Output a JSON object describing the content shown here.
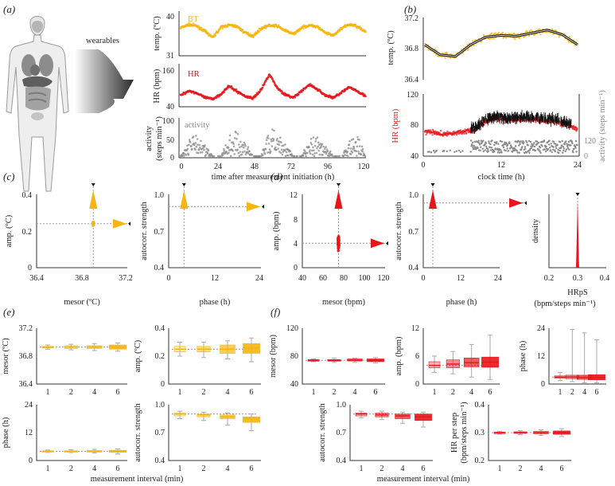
{
  "colors": {
    "temp": "#f6b60f",
    "hr": "#e8151b",
    "activity": "#8a8a8a",
    "fit": "#111111",
    "ref": "#9a9a9a"
  },
  "panels": {
    "a": "(a)",
    "b": "(b)",
    "c": "(c)",
    "d": "(d)",
    "e": "(e)",
    "f": "(f)"
  },
  "texts": {
    "wearables": "wearables",
    "bt": "BT",
    "hr": "HR",
    "activity": "activity",
    "a_ylabel_temp": "temp. (ºC)",
    "a_ylabel_hr": "HR (bpm)",
    "a_ylabel_act1": "activity",
    "a_ylabel_act2": "(steps min⁻¹)",
    "a_xlabel": "time after measurement initiation (h)",
    "b_ylabel_temp": "temp. (ºC)",
    "b_ylabel_hr": "HR (bpm)",
    "b_ylabel_act": "activity (steps min⁻¹)",
    "b_xlabel": "clock time (h)",
    "amp_c": "amp. (ºC)",
    "mesor_c": "mesor (ºC)",
    "autocorr": "autocorr. strength",
    "phase": "phase (h)",
    "amp_bpm": "amp. (bpm)",
    "mesor_bpm": "mesor (bpm)",
    "density": "density",
    "hrps": "HRpS",
    "hrps_unit": "(bpm/steps min⁻¹)",
    "phase_h": "phase (h)",
    "interval": "measurement interval (min)",
    "hr_per_step1": "HR per step",
    "hr_per_step2": "(bpm/steps min⁻¹)"
  },
  "chart_data": [
    {
      "id": "a1",
      "type": "scatter",
      "ylabel": "temp. (ºC)",
      "ylim": [
        31,
        40
      ],
      "yticks": [
        "31",
        "40"
      ],
      "xlim": [
        0,
        120
      ],
      "series": [
        {
          "name": "BT",
          "y": [
            36.5,
            37.2,
            36.9,
            35.8,
            34.5,
            36.6,
            37.1,
            36.8,
            35.5,
            34.8,
            36.4,
            37.0,
            36.9,
            35.9,
            35.2,
            36.5,
            37.1,
            36.7,
            35.4,
            34.9,
            36.5,
            37.2,
            36.8,
            35.6
          ]
        }
      ]
    },
    {
      "id": "a2",
      "type": "scatter",
      "ylabel": "HR (bpm)",
      "ylim": [
        40,
        160
      ],
      "yticks": [
        "40",
        "160"
      ],
      "xlim": [
        0,
        120
      ],
      "series": [
        {
          "name": "HR",
          "y": [
            68,
            82,
            75,
            62,
            58,
            72,
            95,
            80,
            66,
            60,
            85,
            130,
            90,
            70,
            62,
            80,
            100,
            85,
            68,
            62,
            78,
            92,
            80,
            66
          ]
        }
      ]
    },
    {
      "id": "a3",
      "type": "scatter",
      "ylabel": "activity (steps min⁻¹)",
      "ylim": [
        0,
        100
      ],
      "yticks": [
        "0",
        "50",
        "100"
      ],
      "xlim": [
        0,
        120
      ],
      "xticks": [
        "0",
        "24",
        "48",
        "72",
        "96",
        "120"
      ],
      "xlabel": "time after measurement initiation (h)",
      "series": [
        {
          "name": "activity",
          "y": [
            0,
            45,
            60,
            30,
            0,
            0,
            55,
            70,
            40,
            0,
            0,
            80,
            65,
            35,
            0,
            0,
            50,
            60,
            30,
            0,
            0,
            45,
            55,
            0
          ]
        }
      ]
    },
    {
      "id": "b1",
      "type": "line",
      "ylabel": "temp. (ºC)",
      "ylim": [
        36.4,
        37.2
      ],
      "yticks": [
        "36.4",
        "36.8",
        "37.2"
      ],
      "xlim": [
        0,
        24
      ],
      "series": [
        {
          "name": "fit",
          "y": [
            36.85,
            36.72,
            36.7,
            36.85,
            36.95,
            36.97,
            36.96,
            37.0,
            37.04,
            36.98,
            36.85
          ]
        }
      ]
    },
    {
      "id": "b2",
      "type": "scatter",
      "ylabel": "HR (bpm)",
      "ylim": [
        40,
        120
      ],
      "yticks": [
        "40",
        "80",
        "120"
      ],
      "y2ticks": [
        "0",
        "120"
      ],
      "y2label": "activity (steps min⁻¹)",
      "xlim": [
        0,
        24
      ],
      "xticks": [
        "0",
        "12",
        "24"
      ],
      "xlabel": "clock time (h)",
      "series": [
        {
          "name": "HR",
          "y": [
            72,
            70,
            68,
            70,
            72,
            74,
            85,
            88,
            86,
            87,
            88,
            86,
            85,
            84,
            80,
            74
          ]
        }
      ]
    },
    {
      "id": "c1",
      "type": "scatter",
      "ylabel": "amp. (ºC)",
      "xlabel": "mesor (ºC)",
      "xlim": [
        36.4,
        37.2
      ],
      "ylim": [
        0,
        0.4
      ],
      "xticks": [
        "36.4",
        "36.8",
        "37.2"
      ],
      "yticks": [
        "0",
        "0.2",
        "0.4"
      ],
      "center": [
        36.9,
        0.24
      ]
    },
    {
      "id": "c2",
      "type": "scatter",
      "ylabel": "autocorr. strength",
      "xlabel": "phase (h)",
      "xlim": [
        0,
        24
      ],
      "ylim": [
        0.4,
        1.0
      ],
      "xticks": [
        "0",
        "12",
        "24"
      ],
      "yticks": [
        "0.4",
        "0.7",
        "1.0"
      ],
      "center": [
        4,
        0.9
      ]
    },
    {
      "id": "d1",
      "type": "scatter",
      "ylabel": "amp. (bpm)",
      "xlabel": "mesor (bpm)",
      "xlim": [
        40,
        120
      ],
      "ylim": [
        0,
        12
      ],
      "xticks": [
        "40",
        "60",
        "80",
        "100",
        "120"
      ],
      "yticks": [
        "0",
        "4",
        "8",
        "12"
      ],
      "center": [
        75,
        4
      ]
    },
    {
      "id": "d2",
      "type": "scatter",
      "ylabel": "autocorr. strength",
      "xlabel": "phase (h)",
      "xlim": [
        0,
        24
      ],
      "ylim": [
        0.4,
        1.0
      ],
      "xticks": [
        "0",
        "12",
        "24"
      ],
      "yticks": [
        "0.4",
        "0.7",
        "1.0"
      ],
      "center": [
        3,
        0.93
      ]
    },
    {
      "id": "d3",
      "type": "area",
      "ylabel": "density",
      "xlabel": "HRpS",
      "xlim": [
        0.2,
        0.4
      ],
      "xticks": [
        "0.2",
        "0.3",
        "0.4"
      ],
      "center": 0.3
    },
    {
      "id": "e1",
      "type": "box",
      "ylabel": "mesor (ºC)",
      "categories": [
        "1",
        "2",
        "4",
        "6"
      ],
      "ylim": [
        36.4,
        37.2
      ],
      "yticks": [
        "36.4",
        "36.8",
        "37.2"
      ],
      "ref": 36.93,
      "boxes": [
        [
          36.9,
          36.92,
          36.93,
          36.94,
          36.96
        ],
        [
          36.89,
          36.91,
          36.93,
          36.95,
          36.97
        ],
        [
          36.88,
          36.91,
          36.93,
          36.95,
          36.98
        ],
        [
          36.87,
          36.9,
          36.93,
          36.96,
          36.99
        ]
      ]
    },
    {
      "id": "e2",
      "type": "box",
      "ylabel": "amp. (ºC)",
      "categories": [
        "1",
        "2",
        "4",
        "6"
      ],
      "ylim": [
        0,
        0.4
      ],
      "yticks": [
        "0",
        "0.2",
        "0.4"
      ],
      "ref": 0.25,
      "boxes": [
        [
          0.2,
          0.23,
          0.25,
          0.27,
          0.3
        ],
        [
          0.19,
          0.23,
          0.25,
          0.27,
          0.3
        ],
        [
          0.18,
          0.22,
          0.25,
          0.28,
          0.31
        ],
        [
          0.16,
          0.22,
          0.26,
          0.29,
          0.33
        ]
      ]
    },
    {
      "id": "e3",
      "type": "box",
      "ylabel": "phase (h)",
      "categories": [
        "1",
        "2",
        "4",
        "6"
      ],
      "ylim": [
        0,
        24
      ],
      "yticks": [
        "0",
        "12",
        "24"
      ],
      "ref": 4,
      "xlabel": "measurement interval (min)",
      "boxes": [
        [
          3.5,
          3.8,
          4,
          4.2,
          4.5
        ],
        [
          3.4,
          3.8,
          4,
          4.2,
          4.6
        ],
        [
          3.2,
          3.7,
          4,
          4.3,
          4.8
        ],
        [
          2.8,
          3.5,
          4,
          4.4,
          5.0
        ]
      ]
    },
    {
      "id": "e4",
      "type": "box",
      "ylabel": "autocorr. strength",
      "categories": [
        "1",
        "2",
        "4",
        "6"
      ],
      "ylim": [
        0.4,
        1.0
      ],
      "yticks": [
        "0.4",
        "0.7",
        "1.0"
      ],
      "ref": 0.9,
      "boxes": [
        [
          0.85,
          0.88,
          0.9,
          0.91,
          0.93
        ],
        [
          0.83,
          0.87,
          0.89,
          0.9,
          0.92
        ],
        [
          0.78,
          0.85,
          0.87,
          0.89,
          0.91
        ],
        [
          0.72,
          0.81,
          0.85,
          0.87,
          0.9
        ]
      ]
    },
    {
      "id": "f1",
      "type": "box",
      "ylabel": "mesor (bpm)",
      "categories": [
        "1",
        "2",
        "4",
        "6"
      ],
      "ylim": [
        40,
        120
      ],
      "yticks": [
        "40",
        "80",
        "120"
      ],
      "ref": 74,
      "boxes": [
        [
          72,
          73,
          74,
          75,
          76
        ],
        [
          71,
          73,
          74,
          75,
          77
        ],
        [
          71,
          73,
          74,
          76,
          77
        ],
        [
          70,
          72,
          74,
          76,
          78
        ]
      ]
    },
    {
      "id": "f2",
      "type": "box",
      "ylabel": "amp. (bpm)",
      "categories": [
        "1",
        "2",
        "4",
        "6"
      ],
      "ylim": [
        0,
        12
      ],
      "yticks": [
        "0",
        "6",
        "12"
      ],
      "ref": 4,
      "boxes": [
        [
          2.5,
          3.5,
          4,
          4.8,
          6
        ],
        [
          2.2,
          3.5,
          4.3,
          5.2,
          7
        ],
        [
          1.5,
          3.7,
          4.6,
          5.6,
          8.5
        ],
        [
          1.0,
          3.6,
          4.7,
          5.8,
          10.5
        ]
      ]
    },
    {
      "id": "f3",
      "type": "box",
      "ylabel": "phase (h)",
      "categories": [
        "1",
        "2",
        "4",
        "6"
      ],
      "ylim": [
        0,
        24
      ],
      "yticks": [
        "0",
        "12",
        "24"
      ],
      "ref": 3,
      "boxes": [
        [
          1.5,
          2.5,
          3,
          3.5,
          5
        ],
        [
          1.0,
          2.3,
          3,
          3.8,
          23.5
        ],
        [
          0.5,
          2.0,
          2.8,
          3.8,
          22
        ],
        [
          0.5,
          1.8,
          2.8,
          4.0,
          19
        ]
      ]
    },
    {
      "id": "f4",
      "type": "box",
      "ylabel": "autocorr. strength",
      "categories": [
        "1",
        "2",
        "4",
        "6"
      ],
      "ylim": [
        0.4,
        1.0
      ],
      "yticks": [
        "0.4",
        "0.7",
        "1.0"
      ],
      "ref": 0.9,
      "xlabel": "measurement interval (min)",
      "boxes": [
        [
          0.86,
          0.88,
          0.9,
          0.91,
          0.93
        ],
        [
          0.84,
          0.87,
          0.89,
          0.91,
          0.93
        ],
        [
          0.8,
          0.85,
          0.88,
          0.9,
          0.92
        ],
        [
          0.76,
          0.83,
          0.87,
          0.9,
          0.92
        ]
      ]
    },
    {
      "id": "f5",
      "type": "box",
      "ylabel": "HR per step (bpm/steps min⁻¹)",
      "categories": [
        "1",
        "2",
        "4",
        "6"
      ],
      "ylim": [
        0.2,
        0.4
      ],
      "yticks": [
        "0.2",
        "0.3",
        "0.4"
      ],
      "ref": 0.3,
      "boxes": [
        [
          0.295,
          0.298,
          0.3,
          0.302,
          0.305
        ],
        [
          0.293,
          0.297,
          0.3,
          0.303,
          0.307
        ],
        [
          0.29,
          0.296,
          0.3,
          0.304,
          0.31
        ],
        [
          0.286,
          0.294,
          0.3,
          0.306,
          0.314
        ]
      ]
    }
  ]
}
